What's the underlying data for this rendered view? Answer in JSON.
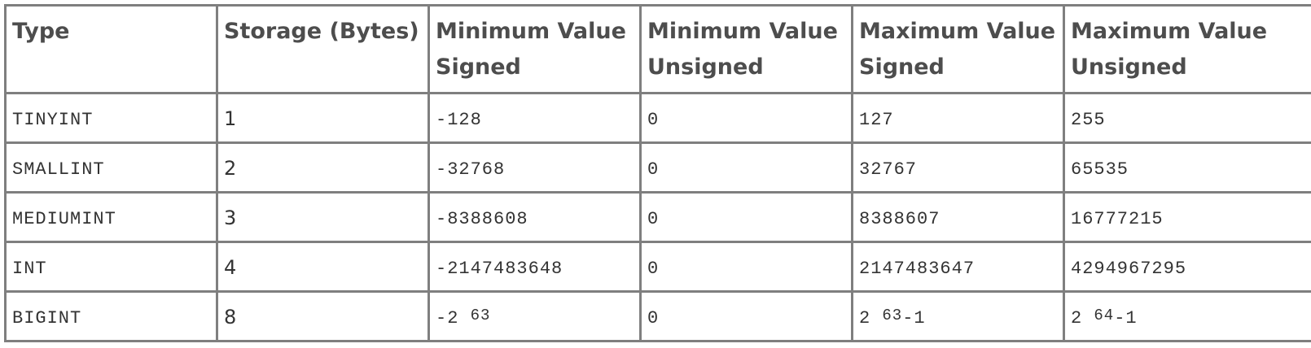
{
  "headers": {
    "type": "Type",
    "storage": "Storage (Bytes)",
    "min_signed_1": "Minimum Value",
    "min_signed_2": "Signed",
    "min_unsigned_1": "Minimum Value",
    "min_unsigned_2": "Unsigned",
    "max_signed_1": "Maximum Value",
    "max_signed_2": "Signed",
    "max_unsigned_1": "Maximum Value",
    "max_unsigned_2": "Unsigned"
  },
  "rows": [
    {
      "type": "TINYINT",
      "storage": "1",
      "min_signed": "-128",
      "min_unsigned": "0",
      "max_signed": "127",
      "max_unsigned": "255"
    },
    {
      "type": "SMALLINT",
      "storage": "2",
      "min_signed": "-32768",
      "min_unsigned": "0",
      "max_signed": "32767",
      "max_unsigned": "65535"
    },
    {
      "type": "MEDIUMINT",
      "storage": "3",
      "min_signed": "-8388608",
      "min_unsigned": "0",
      "max_signed": "8388607",
      "max_unsigned": "16777215"
    },
    {
      "type": "INT",
      "storage": "4",
      "min_signed": "-2147483648",
      "min_unsigned": "0",
      "max_signed": "2147483647",
      "max_unsigned": "4294967295"
    },
    {
      "type": "BIGINT",
      "storage": "8",
      "min_signed_base": "-2 ",
      "min_signed_exp": "63",
      "min_unsigned": "0",
      "max_signed_base": "2 ",
      "max_signed_exp": "63",
      "max_signed_suffix": "-1",
      "max_unsigned_base": "2 ",
      "max_unsigned_exp": "64",
      "max_unsigned_suffix": "-1"
    }
  ]
}
